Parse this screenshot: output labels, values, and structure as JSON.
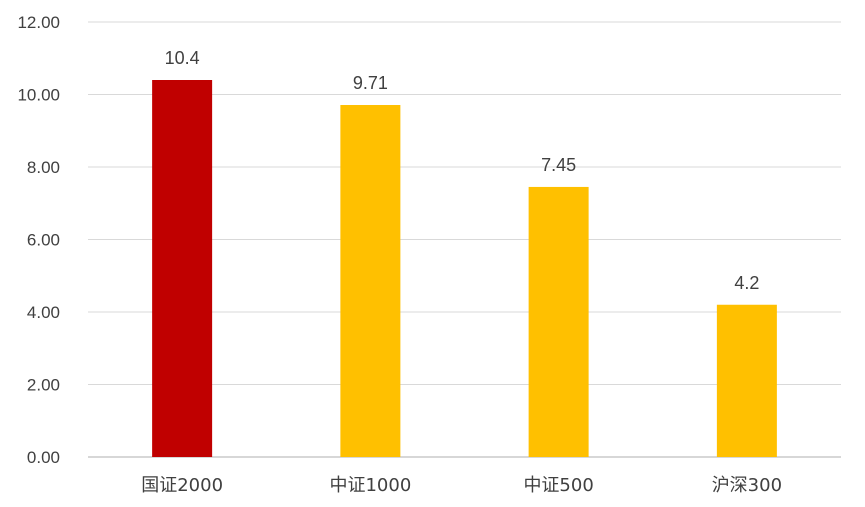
{
  "chart_data": {
    "type": "bar",
    "title": "",
    "xlabel": "",
    "ylabel": "",
    "categories": [
      "国证2000",
      "中证1000",
      "中证500",
      "沪深300"
    ],
    "values": [
      10.4,
      9.71,
      7.45,
      4.2
    ],
    "data_labels": [
      "10.4",
      "9.71",
      "7.45",
      "4.2"
    ],
    "bar_colors": [
      "#c00000",
      "#ffc000",
      "#ffc000",
      "#ffc000"
    ],
    "ylim": [
      0,
      12
    ],
    "yticks": [
      0,
      2,
      4,
      6,
      8,
      10,
      12
    ],
    "ytick_labels": [
      "0.00",
      "2.00",
      "4.00",
      "6.00",
      "8.00",
      "10.00",
      "12.00"
    ],
    "grid": true,
    "legend": "none"
  }
}
